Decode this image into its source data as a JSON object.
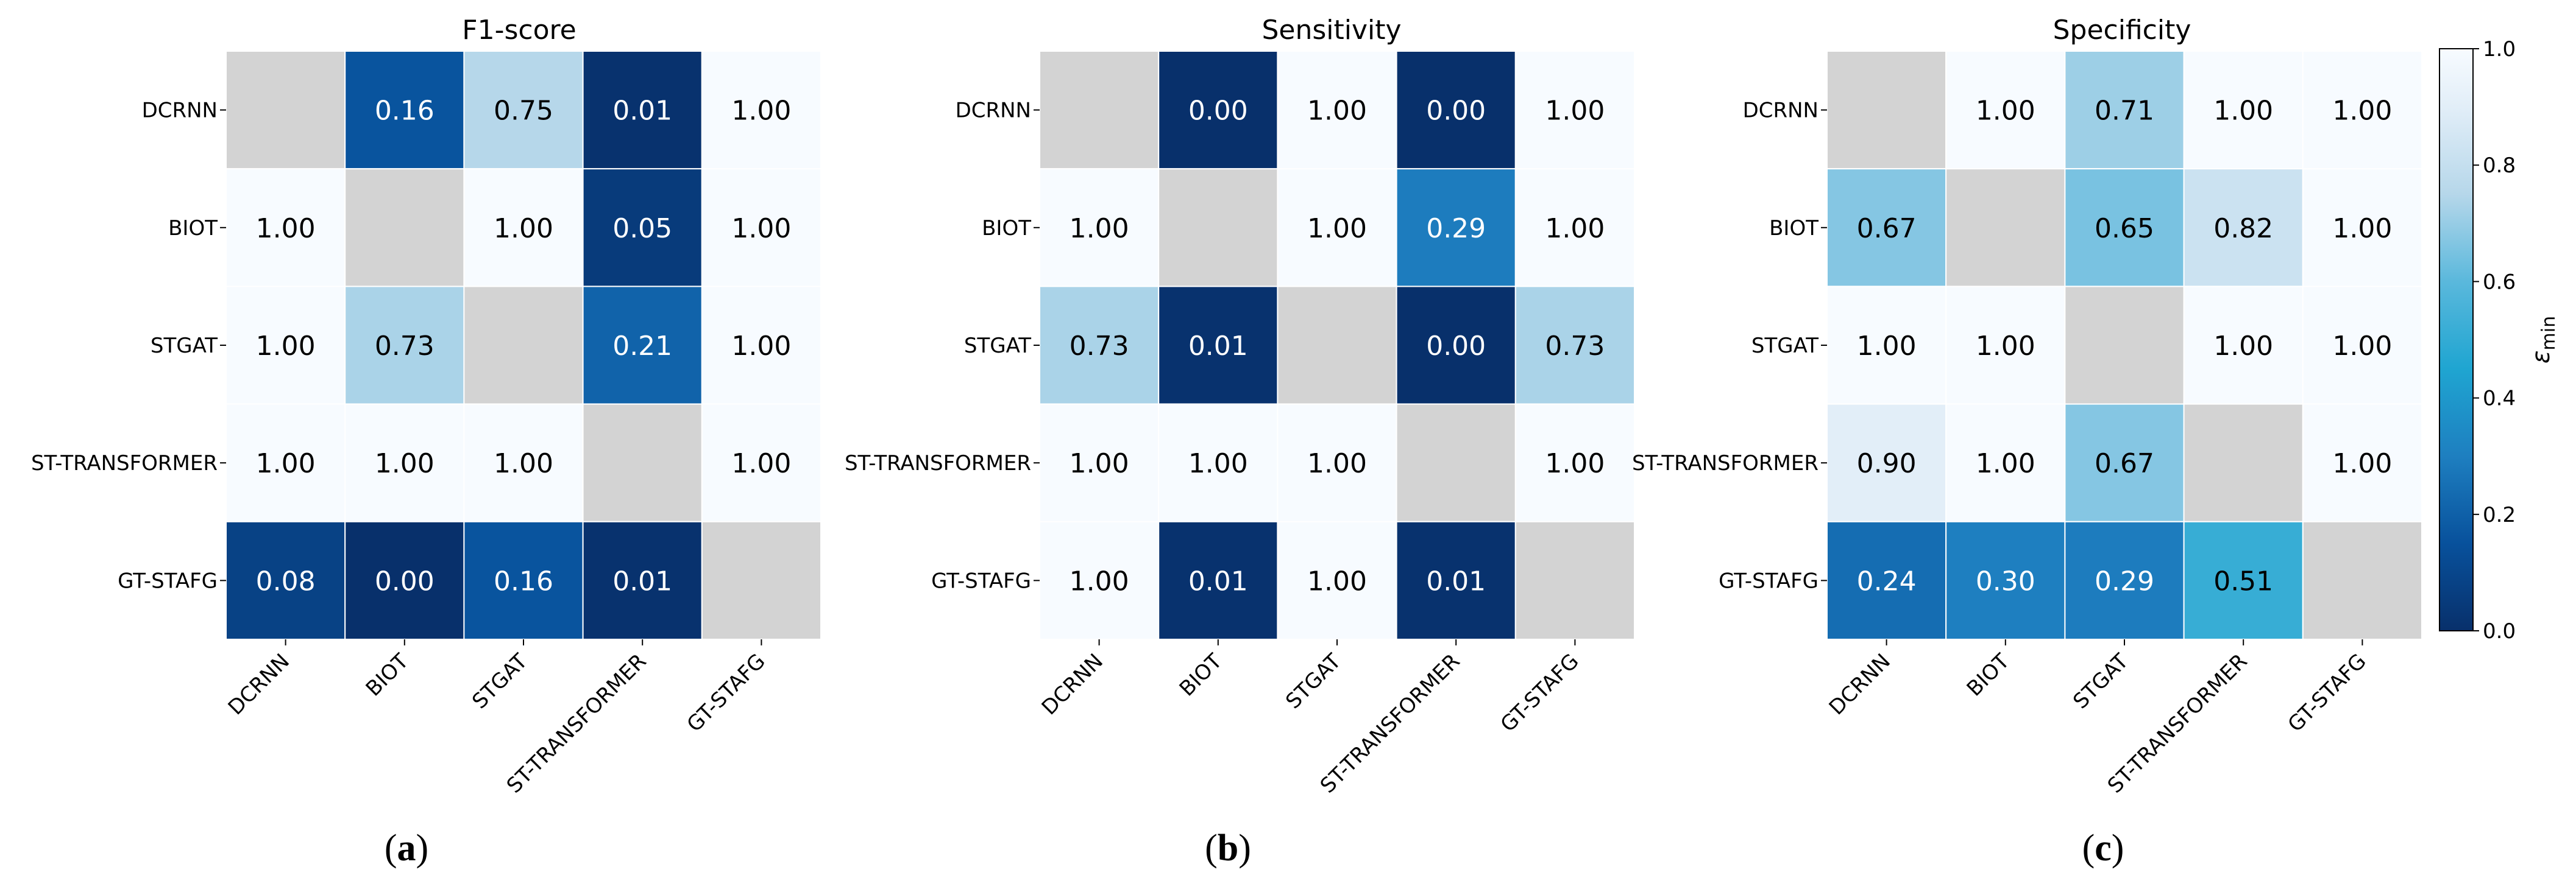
{
  "models": [
    "DCRNN",
    "BIOT",
    "STGAT",
    "ST-TRANSFORMER",
    "GT-STAFG"
  ],
  "chart_data": [
    {
      "type": "heatmap",
      "title": "F1-score",
      "panel_label": "a",
      "rows": [
        "DCRNN",
        "BIOT",
        "STGAT",
        "ST-TRANSFORMER",
        "GT-STAFG"
      ],
      "cols": [
        "DCRNN",
        "BIOT",
        "STGAT",
        "ST-TRANSFORMER",
        "GT-STAFG"
      ],
      "values": [
        [
          null,
          0.16,
          0.75,
          0.01,
          1.0
        ],
        [
          1.0,
          null,
          1.0,
          0.05,
          1.0
        ],
        [
          1.0,
          0.73,
          null,
          0.21,
          1.0
        ],
        [
          1.0,
          1.0,
          1.0,
          null,
          1.0
        ],
        [
          0.08,
          0.0,
          0.16,
          0.01,
          null
        ]
      ]
    },
    {
      "type": "heatmap",
      "title": "Sensitivity",
      "panel_label": "b",
      "rows": [
        "DCRNN",
        "BIOT",
        "STGAT",
        "ST-TRANSFORMER",
        "GT-STAFG"
      ],
      "cols": [
        "DCRNN",
        "BIOT",
        "STGAT",
        "ST-TRANSFORMER",
        "GT-STAFG"
      ],
      "values": [
        [
          null,
          0.0,
          1.0,
          0.0,
          1.0
        ],
        [
          1.0,
          null,
          1.0,
          0.29,
          1.0
        ],
        [
          0.73,
          0.01,
          null,
          0.0,
          0.73
        ],
        [
          1.0,
          1.0,
          1.0,
          null,
          1.0
        ],
        [
          1.0,
          0.01,
          1.0,
          0.01,
          null
        ]
      ]
    },
    {
      "type": "heatmap",
      "title": "Specificity",
      "panel_label": "c",
      "rows": [
        "DCRNN",
        "BIOT",
        "STGAT",
        "ST-TRANSFORMER",
        "GT-STAFG"
      ],
      "cols": [
        "DCRNN",
        "BIOT",
        "STGAT",
        "ST-TRANSFORMER",
        "GT-STAFG"
      ],
      "values": [
        [
          null,
          1.0,
          0.71,
          1.0,
          1.0
        ],
        [
          0.67,
          null,
          0.65,
          0.82,
          1.0
        ],
        [
          1.0,
          1.0,
          null,
          1.0,
          1.0
        ],
        [
          0.9,
          1.0,
          0.67,
          null,
          1.0
        ],
        [
          0.24,
          0.3,
          0.29,
          0.51,
          null
        ]
      ]
    }
  ],
  "colorbar": {
    "label_main": "ε",
    "label_sub": "min",
    "range": [
      0.0,
      1.0
    ],
    "ticks": [
      "0.0",
      "0.2",
      "0.4",
      "0.6",
      "0.8",
      "1.0"
    ],
    "colormap": "Blues-like",
    "stops": [
      [
        0.0,
        "#08306b"
      ],
      [
        0.15,
        "#08519c"
      ],
      [
        0.3,
        "#1e7fc0"
      ],
      [
        0.45,
        "#1fa5d1"
      ],
      [
        0.6,
        "#5ab8dc"
      ],
      [
        0.75,
        "#b6d7ea"
      ],
      [
        0.9,
        "#e2eef8"
      ],
      [
        1.0,
        "#f7fbff"
      ]
    ]
  },
  "diagonal_color": "#d3d3d3"
}
